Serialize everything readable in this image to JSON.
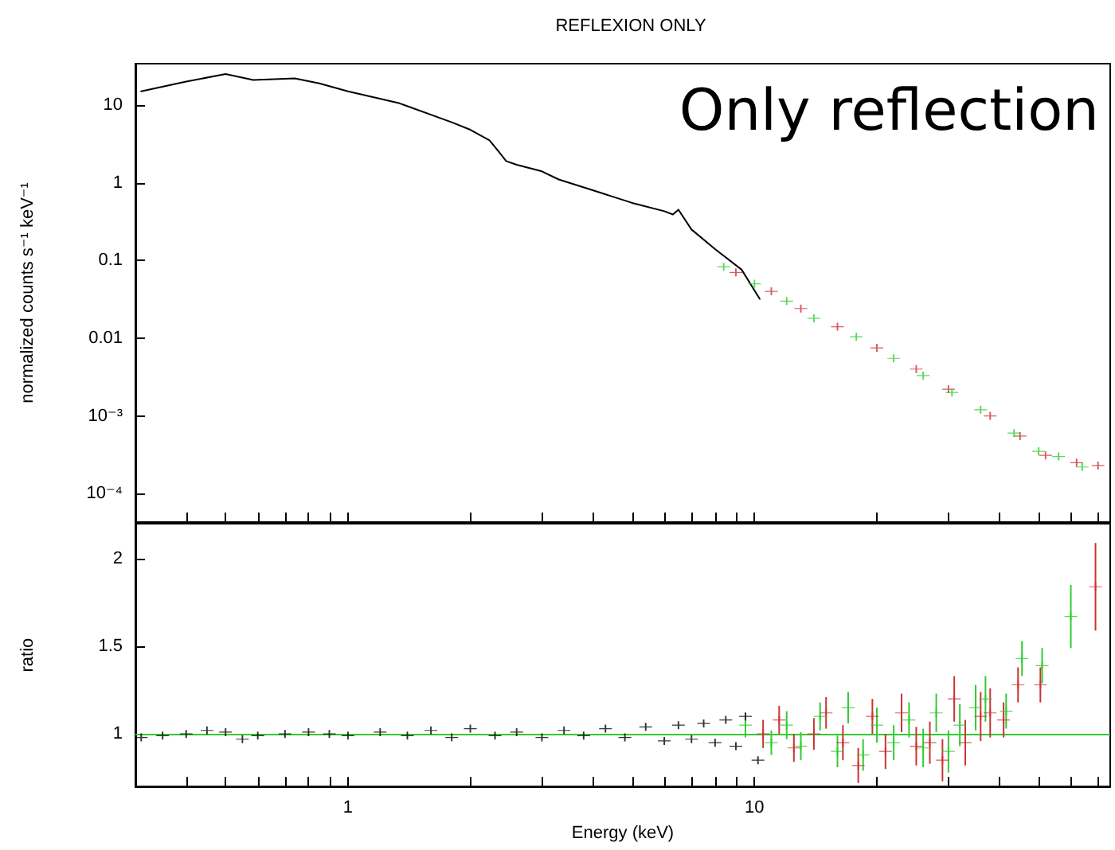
{
  "chart_data": [
    {
      "type": "line",
      "title": "REFLEXION ONLY",
      "ylabel": "normalized counts s⁻¹ keV⁻¹",
      "annotations": [
        "Only reflection"
      ],
      "log": "xy",
      "tick_labels": "y",
      "xlim": [
        0.3,
        75
      ],
      "ylim": [
        4.3e-05,
        34
      ],
      "xticks": [
        {
          "value": 0.4,
          "label": null
        },
        {
          "value": 0.5,
          "label": null
        },
        {
          "value": 0.6,
          "label": null
        },
        {
          "value": 0.7,
          "label": null
        },
        {
          "value": 0.8,
          "label": null
        },
        {
          "value": 0.9,
          "label": null
        },
        {
          "value": 1,
          "label": null
        },
        {
          "value": 2,
          "label": null
        },
        {
          "value": 3,
          "label": null
        },
        {
          "value": 4,
          "label": null
        },
        {
          "value": 5,
          "label": null
        },
        {
          "value": 6,
          "label": null
        },
        {
          "value": 7,
          "label": null
        },
        {
          "value": 8,
          "label": null
        },
        {
          "value": 9,
          "label": null
        },
        {
          "value": 10,
          "label": null
        },
        {
          "value": 20,
          "label": null
        },
        {
          "value": 30,
          "label": null
        },
        {
          "value": 40,
          "label": null
        },
        {
          "value": 50,
          "label": null
        },
        {
          "value": 60,
          "label": null
        },
        {
          "value": 70,
          "label": null
        }
      ],
      "yticks": [
        10,
        1,
        0.1,
        0.01,
        {
          "value": 0.001,
          "label": "10⁻³"
        },
        {
          "value": 0.0001,
          "label": "10⁻⁴"
        }
      ],
      "series": [
        {
          "marker": "none",
          "color": "#000000",
          "x": [
            0.31,
            0.4,
            0.5,
            0.585,
            0.74,
            0.85,
            1.0,
            1.34,
            1.8,
            2.0,
            2.23,
            2.35,
            2.45,
            2.6,
            3.0,
            3.3,
            4,
            5,
            6,
            6.3,
            6.5,
            7,
            8,
            9.3,
            10.3
          ],
          "values": [
            15,
            20,
            25,
            21,
            22,
            19,
            15,
            10.5,
            6.0,
            4.8,
            3.5,
            2.5,
            1.9,
            1.7,
            1.4,
            1.1,
            0.8,
            0.55,
            0.43,
            0.39,
            0.45,
            0.25,
            0.14,
            0.076,
            0.032
          ]
        },
        {
          "type": "scatter",
          "marker": "cross",
          "color": "#cc3333",
          "x": [
            9,
            11,
            13,
            16,
            20,
            25,
            30,
            38,
            45,
            52,
            62,
            70
          ],
          "values": [
            0.07,
            0.04,
            0.024,
            0.014,
            0.0075,
            0.004,
            0.0022,
            0.001,
            0.00055,
            0.00031,
            0.00025,
            0.00023
          ]
        },
        {
          "type": "scatter",
          "marker": "cross",
          "color": "#33cc33",
          "x": [
            8.4,
            10,
            12,
            14,
            17.8,
            22,
            26,
            30.6,
            36,
            43.5,
            50,
            56,
            64
          ],
          "values": [
            0.083,
            0.05,
            0.03,
            0.018,
            0.0104,
            0.0055,
            0.0033,
            0.002,
            0.0012,
            0.0006,
            0.00035,
            0.0003,
            0.00022
          ]
        }
      ]
    },
    {
      "type": "scatter",
      "xlabel": "Energy (keV)",
      "ylabel": "ratio",
      "log": "x",
      "marker": "cross",
      "xlim": [
        0.3,
        75
      ],
      "ylim": [
        0.7,
        2.2
      ],
      "xticks": [
        {
          "value": 0.4,
          "label": null
        },
        {
          "value": 0.5,
          "label": null
        },
        {
          "value": 0.6,
          "label": null
        },
        {
          "value": 0.7,
          "label": null
        },
        {
          "value": 0.8,
          "label": null
        },
        {
          "value": 0.9,
          "label": null
        },
        1,
        {
          "value": 2,
          "label": null
        },
        {
          "value": 3,
          "label": null
        },
        {
          "value": 4,
          "label": null
        },
        {
          "value": 5,
          "label": null
        },
        {
          "value": 6,
          "label": null
        },
        {
          "value": 7,
          "label": null
        },
        {
          "value": 8,
          "label": null
        },
        {
          "value": 9,
          "label": null
        },
        10,
        {
          "value": 20,
          "label": null
        },
        {
          "value": 30,
          "label": null
        },
        {
          "value": 40,
          "label": null
        },
        {
          "value": 50,
          "label": null
        },
        {
          "value": 60,
          "label": null
        },
        {
          "value": 70,
          "label": null
        }
      ],
      "yticks": [
        1,
        1.5,
        2
      ],
      "ref_lines": [
        {
          "axis": "y",
          "value": 1,
          "color": "#33cc33"
        }
      ],
      "series": [
        {
          "color": "#000000",
          "x": [
            0.31,
            0.35,
            0.4,
            0.45,
            0.5,
            0.55,
            0.6,
            0.7,
            0.8,
            0.9,
            1.0,
            1.2,
            1.4,
            1.6,
            1.8,
            2.0,
            2.3,
            2.6,
            3.0,
            3.4,
            3.8,
            4.3,
            4.8,
            5.4,
            6.0,
            6.5,
            7,
            7.5,
            8,
            8.5,
            9,
            9.5,
            10.2
          ],
          "values": [
            0.98,
            0.99,
            1.0,
            1.02,
            1.01,
            0.97,
            0.99,
            1.0,
            1.01,
            1.0,
            0.99,
            1.01,
            0.99,
            1.02,
            0.98,
            1.03,
            0.99,
            1.01,
            0.98,
            1.02,
            0.99,
            1.03,
            0.98,
            1.04,
            0.96,
            1.05,
            0.97,
            1.06,
            0.95,
            1.08,
            0.93,
            1.1,
            0.85
          ]
        },
        {
          "color": "#cc3333",
          "x": [
            10.5,
            11.5,
            12.5,
            14,
            15,
            16.5,
            18,
            19.5,
            21,
            23,
            25,
            27,
            29,
            31,
            33,
            36,
            38,
            41,
            44.5,
            50.5,
            69
          ],
          "values": [
            1.0,
            1.08,
            0.92,
            1.0,
            1.12,
            0.95,
            0.82,
            1.1,
            0.9,
            1.12,
            0.93,
            0.95,
            0.85,
            1.2,
            0.95,
            1.1,
            1.12,
            1.08,
            1.28,
            1.28,
            1.84
          ],
          "errors": [
            0.08,
            0.08,
            0.08,
            0.09,
            0.09,
            0.1,
            0.1,
            0.1,
            0.1,
            0.11,
            0.11,
            0.12,
            0.12,
            0.13,
            0.13,
            0.14,
            0.14,
            0.1,
            0.1,
            0.1,
            0.25
          ]
        },
        {
          "color": "#33cc33",
          "x": [
            9.5,
            11,
            12,
            13,
            14.5,
            16,
            17,
            18.5,
            20,
            22,
            24,
            26,
            28,
            30,
            32,
            35,
            37,
            41.6,
            45.5,
            51,
            60
          ],
          "values": [
            1.05,
            0.95,
            1.05,
            0.93,
            1.1,
            0.9,
            1.15,
            0.88,
            1.05,
            0.95,
            1.08,
            0.92,
            1.12,
            0.9,
            1.05,
            1.15,
            1.2,
            1.13,
            1.43,
            1.39,
            1.67
          ],
          "errors": [
            0.07,
            0.07,
            0.08,
            0.08,
            0.08,
            0.09,
            0.09,
            0.09,
            0.1,
            0.1,
            0.1,
            0.11,
            0.11,
            0.12,
            0.12,
            0.13,
            0.13,
            0.1,
            0.1,
            0.1,
            0.18
          ]
        }
      ]
    }
  ]
}
